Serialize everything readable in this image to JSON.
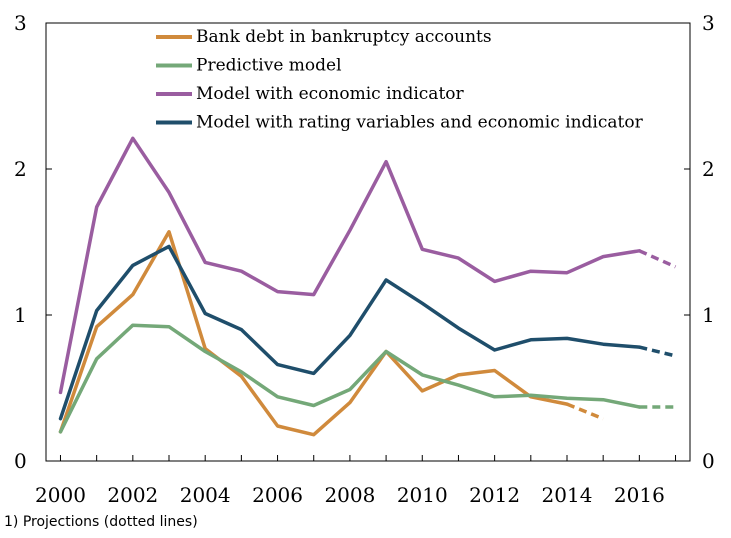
{
  "chart_data": {
    "type": "line",
    "x": [
      2000,
      2001,
      2002,
      2003,
      2004,
      2005,
      2006,
      2007,
      2008,
      2009,
      2010,
      2011,
      2012,
      2013,
      2014,
      2015,
      2016,
      2017
    ],
    "xlim": [
      1999.6,
      2017.4
    ],
    "ylim": [
      0,
      3
    ],
    "xticks": [
      2000,
      2002,
      2004,
      2006,
      2008,
      2010,
      2012,
      2014,
      2016
    ],
    "yticks": [
      0,
      1,
      2,
      3
    ],
    "grid": false,
    "legend_position": "top-center",
    "series": [
      {
        "name": "Bank debt in bankruptcy accounts",
        "color": "#D08A3C",
        "values": [
          0.2,
          0.92,
          1.14,
          1.57,
          0.77,
          0.58,
          0.24,
          0.18,
          0.4,
          0.75,
          0.48,
          0.59,
          0.62,
          0.44,
          0.39,
          0.29,
          null,
          null
        ],
        "projection_from_index": 14
      },
      {
        "name": "Predictive model",
        "color": "#74A878",
        "values": [
          0.2,
          0.7,
          0.93,
          0.92,
          0.75,
          0.61,
          0.44,
          0.38,
          0.49,
          0.75,
          0.59,
          0.52,
          0.44,
          0.45,
          0.43,
          0.42,
          0.37,
          0.37
        ],
        "projection_from_index": 16
      },
      {
        "name": "Model with economic indicator",
        "color": "#9A5DA0",
        "values": [
          0.47,
          1.74,
          2.21,
          1.84,
          1.36,
          1.3,
          1.16,
          1.14,
          1.58,
          2.05,
          1.45,
          1.39,
          1.23,
          1.3,
          1.29,
          1.4,
          1.44,
          1.33
        ],
        "projection_from_index": 16
      },
      {
        "name": "Model with rating variables and economic indicator",
        "color": "#1F4E6B",
        "values": [
          0.29,
          1.03,
          1.34,
          1.47,
          1.01,
          0.9,
          0.66,
          0.6,
          0.86,
          1.24,
          1.08,
          0.91,
          0.76,
          0.83,
          0.84,
          0.8,
          0.78,
          0.72
        ],
        "projection_from_index": 16
      }
    ]
  },
  "footnote": "1) Projections (dotted lines)"
}
